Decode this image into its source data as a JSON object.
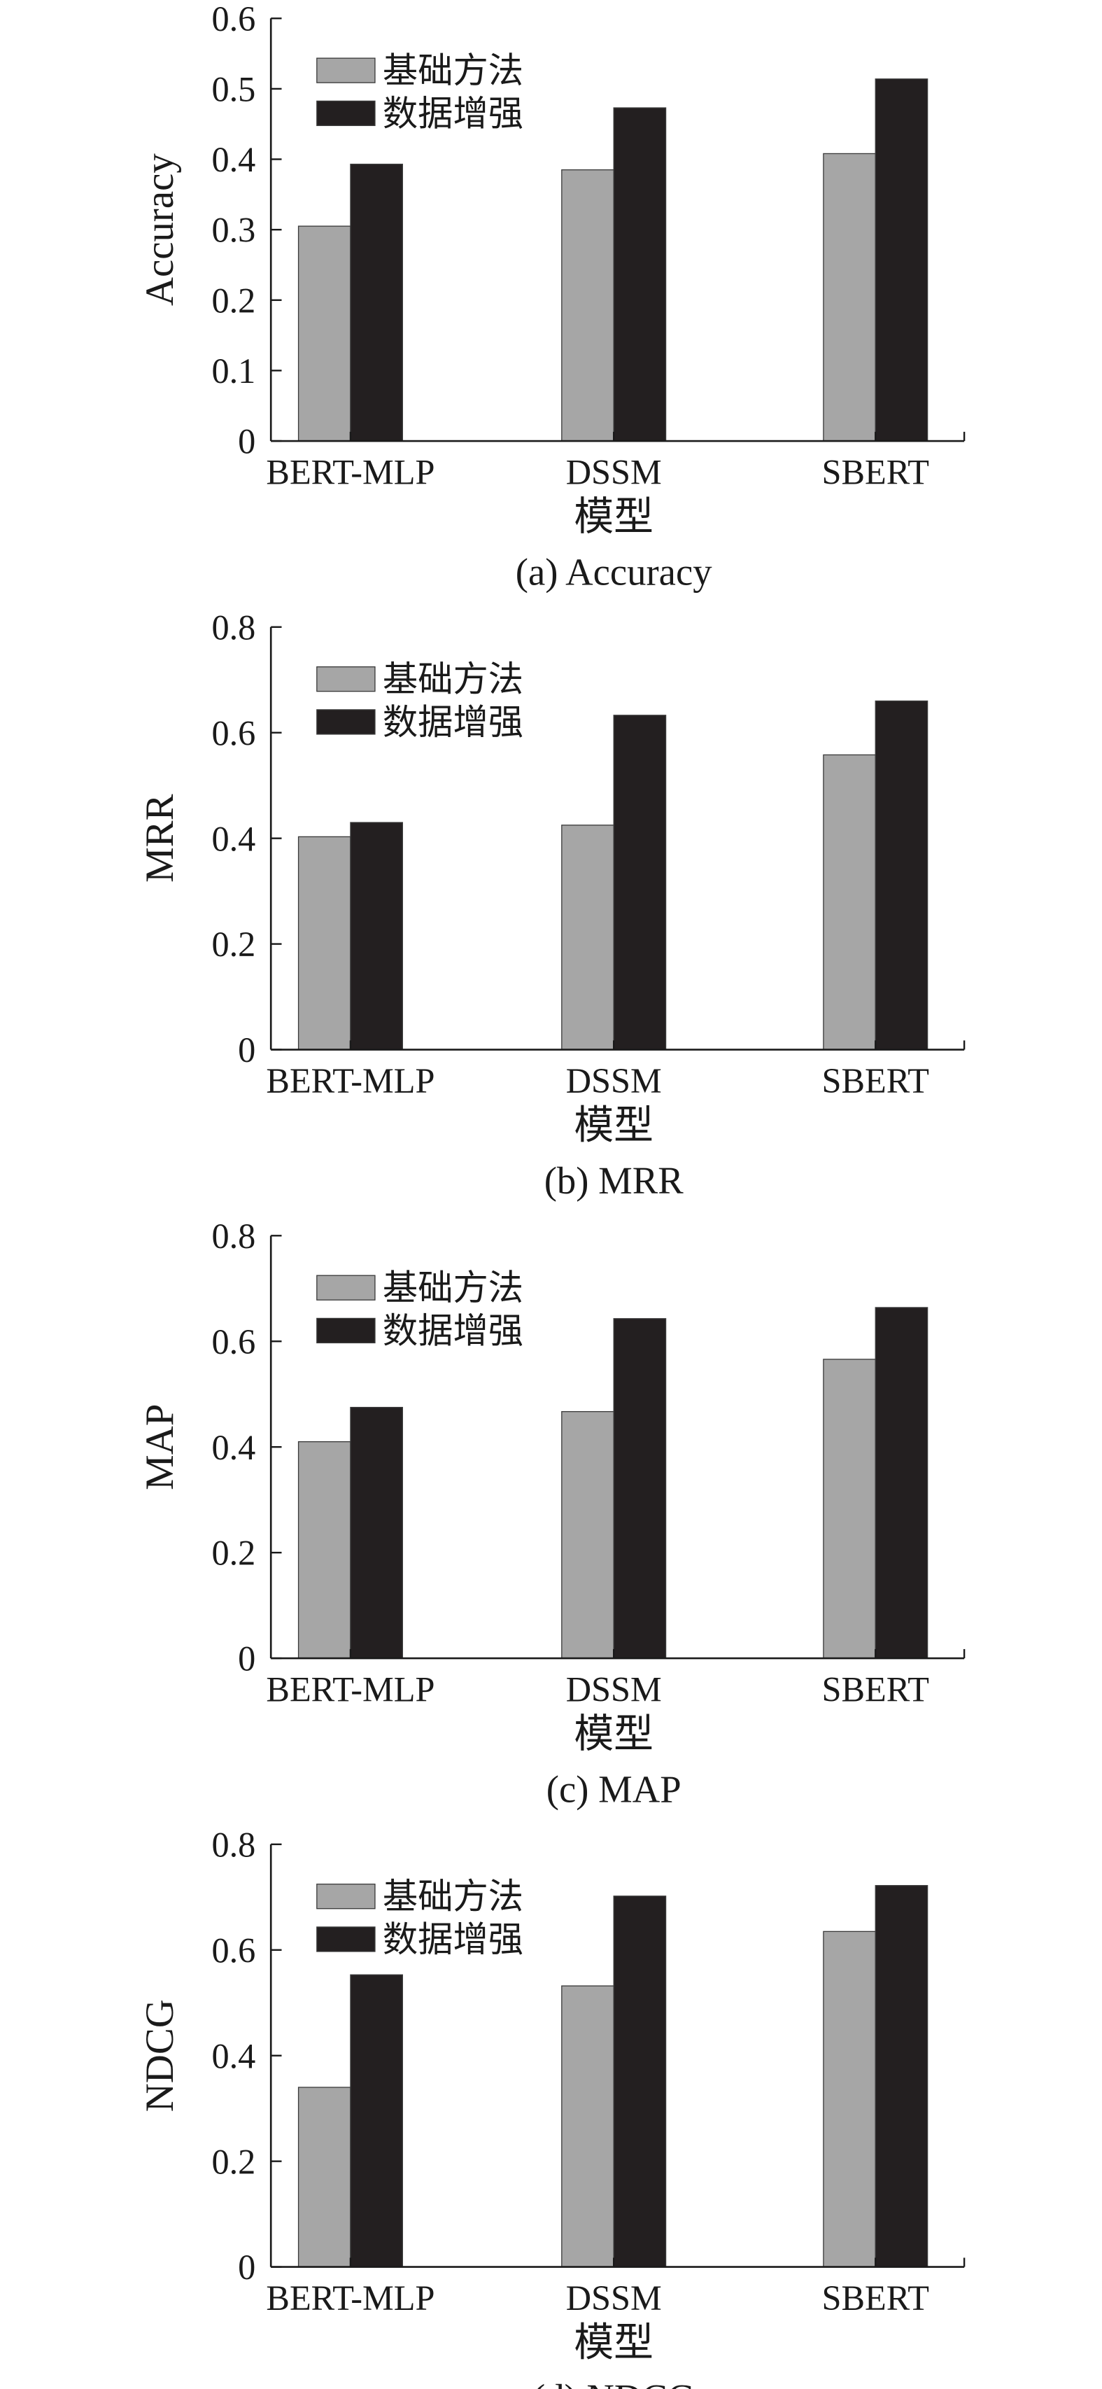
{
  "chart_data": [
    {
      "type": "bar",
      "caption": "(a) Accuracy",
      "ylabel": "Accuracy",
      "xlabel": "模型",
      "categories": [
        "BERT-MLP",
        "DSSM",
        "SBERT"
      ],
      "ylim": [
        0,
        0.6
      ],
      "yticks": [
        "0",
        "0.1",
        "0.2",
        "0.3",
        "0.4",
        "0.5",
        "0.6"
      ],
      "legend_position": "top-left",
      "series": [
        {
          "name": "基础方法",
          "color": "#a6a6a6",
          "values": [
            0.305,
            0.385,
            0.408
          ]
        },
        {
          "name": "数据增强",
          "color": "#231f20",
          "values": [
            0.393,
            0.473,
            0.514
          ]
        }
      ]
    },
    {
      "type": "bar",
      "caption": "(b) MRR",
      "ylabel": "MRR",
      "xlabel": "模型",
      "categories": [
        "BERT-MLP",
        "DSSM",
        "SBERT"
      ],
      "ylim": [
        0,
        0.8
      ],
      "yticks": [
        "0",
        "0.2",
        "0.4",
        "0.6",
        "0.8"
      ],
      "legend_position": "top-left",
      "series": [
        {
          "name": "基础方法",
          "color": "#a6a6a6",
          "values": [
            0.403,
            0.425,
            0.558
          ]
        },
        {
          "name": "数据增强",
          "color": "#231f20",
          "values": [
            0.43,
            0.633,
            0.66
          ]
        }
      ]
    },
    {
      "type": "bar",
      "caption": "(c) MAP",
      "ylabel": "MAP",
      "xlabel": "模型",
      "categories": [
        "BERT-MLP",
        "DSSM",
        "SBERT"
      ],
      "ylim": [
        0,
        0.8
      ],
      "yticks": [
        "0",
        "0.2",
        "0.4",
        "0.6",
        "0.8"
      ],
      "legend_position": "top-left",
      "series": [
        {
          "name": "基础方法",
          "color": "#a6a6a6",
          "values": [
            0.41,
            0.467,
            0.566
          ]
        },
        {
          "name": "数据增强",
          "color": "#231f20",
          "values": [
            0.475,
            0.643,
            0.664
          ]
        }
      ]
    },
    {
      "type": "bar",
      "caption": "(d) NDCG",
      "ylabel": "NDCG",
      "xlabel": "模型",
      "categories": [
        "BERT-MLP",
        "DSSM",
        "SBERT"
      ],
      "ylim": [
        0,
        0.8
      ],
      "yticks": [
        "0",
        "0.2",
        "0.4",
        "0.6",
        "0.8"
      ],
      "legend_position": "top-left",
      "series": [
        {
          "name": "基础方法",
          "color": "#a6a6a6",
          "values": [
            0.34,
            0.532,
            0.635
          ]
        },
        {
          "name": "数据增强",
          "color": "#231f20",
          "values": [
            0.553,
            0.702,
            0.722
          ]
        }
      ]
    }
  ]
}
